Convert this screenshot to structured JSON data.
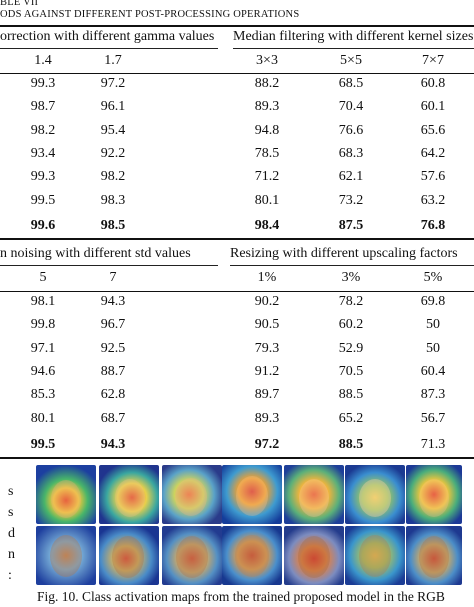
{
  "table": {
    "caption_line1": "BLE VII",
    "caption_line2": "ODS AGAINST DIFFERENT POST-PROCESSING OPERATIONS",
    "top": {
      "group_left": "orrection with different gamma values",
      "group_right": "Median filtering with different kernel sizes",
      "columns": [
        "1.4",
        "1.7",
        "3×3",
        "5×5",
        "7×7"
      ],
      "rows": [
        [
          "99.3",
          "97.2",
          "88.2",
          "68.5",
          "60.8"
        ],
        [
          "98.7",
          "96.1",
          "89.3",
          "70.4",
          "60.1"
        ],
        [
          "98.2",
          "95.4",
          "94.8",
          "76.6",
          "65.6"
        ],
        [
          "93.4",
          "92.2",
          "78.5",
          "68.3",
          "64.2"
        ],
        [
          "99.3",
          "98.2",
          "71.2",
          "62.1",
          "57.6"
        ],
        [
          "99.5",
          "98.3",
          "80.1",
          "73.2",
          "63.2"
        ]
      ],
      "final_row": [
        "99.6",
        "98.5",
        "98.4",
        "87.5",
        "76.8"
      ],
      "final_bold": [
        true,
        true,
        true,
        true,
        true
      ]
    },
    "bottom": {
      "group_left": "n noising with different std values",
      "group_right": "Resizing with different upscaling factors",
      "columns": [
        "5",
        "7",
        "1%",
        "3%",
        "5%"
      ],
      "rows": [
        [
          "98.1",
          "94.3",
          "90.2",
          "78.2",
          "69.8"
        ],
        [
          "99.8",
          "96.7",
          "90.5",
          "60.2",
          "50"
        ],
        [
          "97.1",
          "92.5",
          "79.3",
          "52.9",
          "50"
        ],
        [
          "94.6",
          "88.7",
          "91.2",
          "70.5",
          "60.4"
        ],
        [
          "85.3",
          "62.8",
          "89.7",
          "88.5",
          "87.3"
        ],
        [
          "80.1",
          "68.7",
          "89.3",
          "65.2",
          "56.7"
        ]
      ],
      "final_row": [
        "99.5",
        "94.3",
        "97.2",
        "88.5",
        "71.3"
      ],
      "final_bold": [
        true,
        true,
        true,
        true,
        false
      ]
    }
  },
  "side_text": [
    "s",
    "s",
    "d",
    "n",
    ":"
  ],
  "figure": {
    "caption": "Fig. 10.  Class activation maps from the trained proposed model in the RGB"
  }
}
